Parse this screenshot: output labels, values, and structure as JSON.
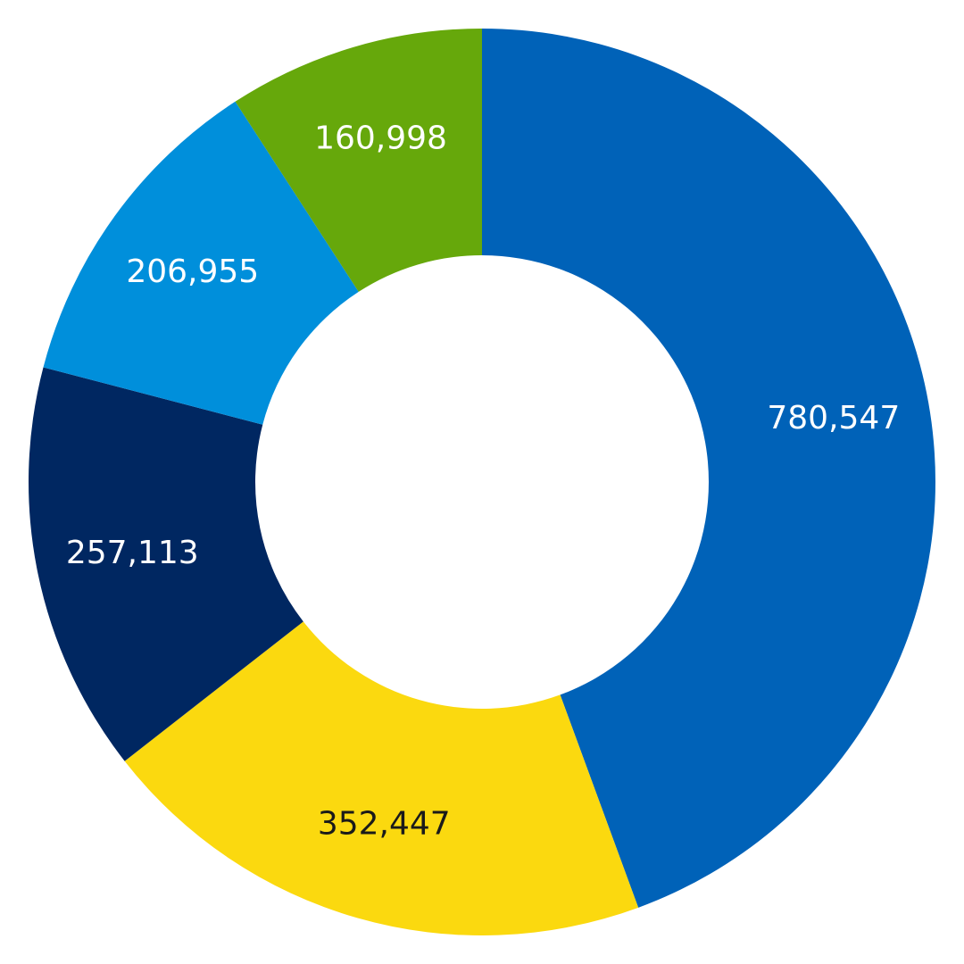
{
  "chart_data": {
    "type": "donut",
    "values": [
      780547,
      352447,
      257113,
      206955,
      160998
    ],
    "value_labels": [
      "780,547",
      "352,447",
      "257,113",
      "206,955",
      "160,998"
    ],
    "colors": [
      "#0062b8",
      "#fbd90f",
      "#002761",
      "#008fdb",
      "#66a80b"
    ]
  }
}
